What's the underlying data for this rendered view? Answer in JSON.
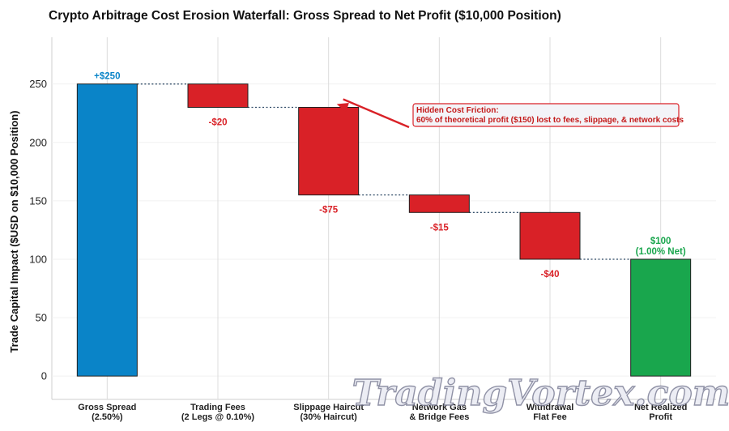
{
  "chart_data": {
    "type": "bar",
    "title": "Crypto Arbitrage Cost Erosion Waterfall: Gross Spread to Net Profit ($10,000 Position)",
    "ylabel": "Trade Capital Impact ($USD on $10,000 Position)",
    "ylim": [
      -20,
      290
    ],
    "yticks": [
      0,
      50,
      100,
      150,
      200,
      250
    ],
    "grid": true,
    "categories": [
      [
        "Gross Spread",
        "(2.50%)"
      ],
      [
        "Trading Fees",
        "(2 Legs @ 0.10%)"
      ],
      [
        "Slippage Haircut",
        "(30% Haircut)"
      ],
      [
        "Network Gas",
        "& Bridge Fees"
      ],
      [
        "Withdrawal",
        "Flat Fee"
      ],
      [
        "Net Realized",
        "Profit"
      ]
    ],
    "bars": [
      {
        "kind": "total",
        "start": 0,
        "end": 250,
        "label": [
          "+$250"
        ]
      },
      {
        "kind": "decrease",
        "start": 250,
        "end": 230,
        "label": [
          "-$20"
        ]
      },
      {
        "kind": "decrease",
        "start": 230,
        "end": 155,
        "label": [
          "-$75"
        ]
      },
      {
        "kind": "decrease",
        "start": 155,
        "end": 140,
        "label": [
          "-$15"
        ]
      },
      {
        "kind": "decrease",
        "start": 140,
        "end": 100,
        "label": [
          "-$40"
        ]
      },
      {
        "kind": "net",
        "start": 0,
        "end": 100,
        "label": [
          "$100",
          "(1.00% Net)"
        ]
      }
    ],
    "annotation": {
      "lines": [
        "Hidden Cost Friction:",
        "60% of theoretical profit ($150) lost to fees, slippage, & network costs"
      ],
      "target_bar": 2
    }
  },
  "colors": {
    "total": "#0a84c8",
    "decrease": "#d92127",
    "net": "#19a64d",
    "total_label": "#0a84c8",
    "decrease_label": "#d92127",
    "net_label": "#19a64d",
    "connector": "#2f4a66",
    "annotation_border": "#d92127",
    "annotation_fill": "#f3f4f8"
  },
  "watermark": "TradingVortex.com"
}
